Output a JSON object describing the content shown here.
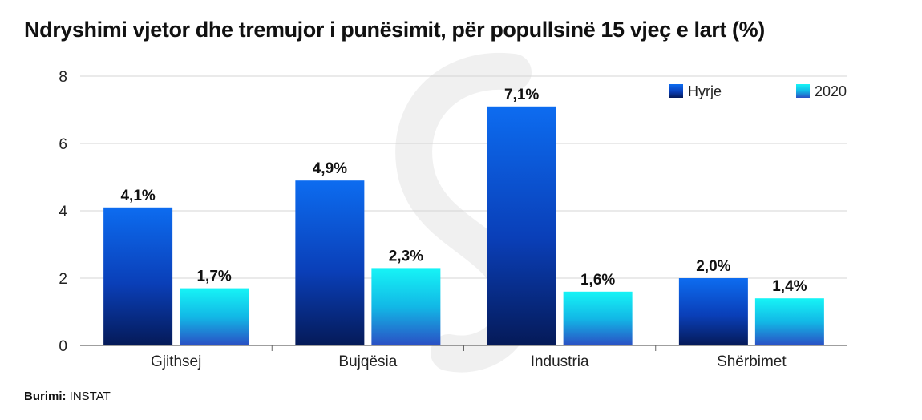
{
  "chart_data": {
    "type": "bar",
    "title": "Ndryshimi vjetor dhe tremujor i punësimit, për popullsinë 15 vjeç e lart (%)",
    "categories": [
      "Gjithsej",
      "Bujqësia",
      "Industria",
      "Shërbimet"
    ],
    "series": [
      {
        "name": "Hyrje",
        "values": [
          4.1,
          4.9,
          7.1,
          2.0
        ],
        "labels": [
          "4,1%",
          "4,9%",
          "7,1%",
          "2,0%"
        ],
        "color": "#0a4fd6"
      },
      {
        "name": "2020",
        "values": [
          1.7,
          2.3,
          1.6,
          1.4
        ],
        "labels": [
          "1,7%",
          "2,3%",
          "1,6%",
          "1,4%"
        ],
        "color": "#12d8e8"
      }
    ],
    "yticks": [
      "0",
      "2",
      "4",
      "6",
      "8"
    ],
    "ylim": [
      0,
      8
    ],
    "xlabel": "",
    "ylabel": "",
    "grid": true,
    "legend": "top-right"
  },
  "source": {
    "label": "Burimi:",
    "value": "INSTAT"
  }
}
